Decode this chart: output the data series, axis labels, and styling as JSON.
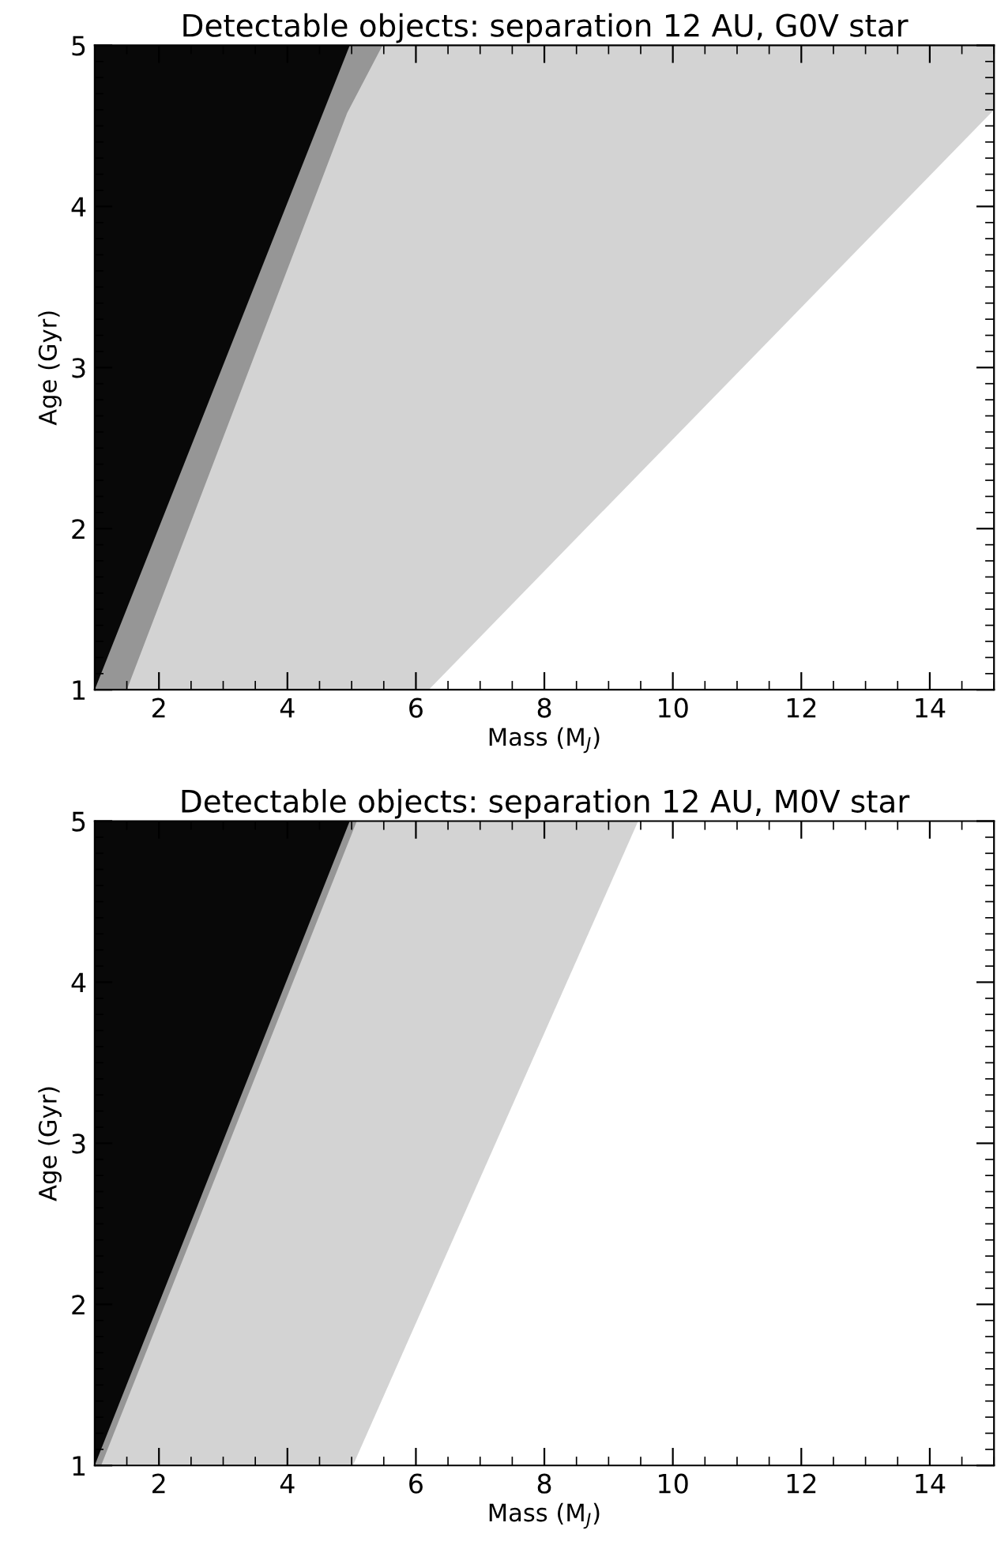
{
  "chart_data": [
    {
      "type": "area",
      "title": "Detectable objects: separation 12 AU, G0V star",
      "xlabel": "Mass (M$_{J}$)",
      "ylabel": "Age (Gyr)",
      "xlim": [
        1,
        15
      ],
      "ylim": [
        1,
        5
      ],
      "xticks": [
        2,
        4,
        6,
        8,
        10,
        12,
        14
      ],
      "yticks": [
        1,
        2,
        3,
        4,
        5
      ],
      "grid": false,
      "legend": false,
      "series": [
        {
          "color": "#d3d3d3",
          "x": [
            1,
            6.2,
            15,
            15,
            1
          ],
          "values": [
            1,
            1,
            4.6,
            5,
            5
          ]
        },
        {
          "color": "#969696",
          "x": [
            1,
            1.5,
            4.93,
            5.48,
            1
          ],
          "values": [
            1,
            1,
            4.58,
            5,
            5
          ]
        },
        {
          "color": "#080808",
          "x": [
            1,
            4.97,
            1
          ],
          "values": [
            1,
            5,
            5
          ]
        }
      ]
    },
    {
      "type": "area",
      "title": "Detectable objects: separation 12 AU, M0V star",
      "xlabel": "Mass (M$_{J}$)",
      "ylabel": "Age (Gyr)",
      "xlim": [
        1,
        15
      ],
      "ylim": [
        1,
        5
      ],
      "xticks": [
        2,
        4,
        6,
        8,
        10,
        12,
        14
      ],
      "yticks": [
        1,
        2,
        3,
        4,
        5
      ],
      "grid": false,
      "legend": false,
      "series": [
        {
          "color": "#d3d3d3",
          "x": [
            1,
            5.02,
            9.46,
            1
          ],
          "values": [
            1,
            1,
            5,
            5
          ]
        },
        {
          "color": "#969696",
          "x": [
            1,
            1.1,
            5.08,
            1
          ],
          "values": [
            1,
            1,
            5,
            5
          ]
        },
        {
          "color": "#080808",
          "x": [
            1,
            4.97,
            1
          ],
          "values": [
            1,
            5,
            5
          ]
        }
      ]
    }
  ]
}
